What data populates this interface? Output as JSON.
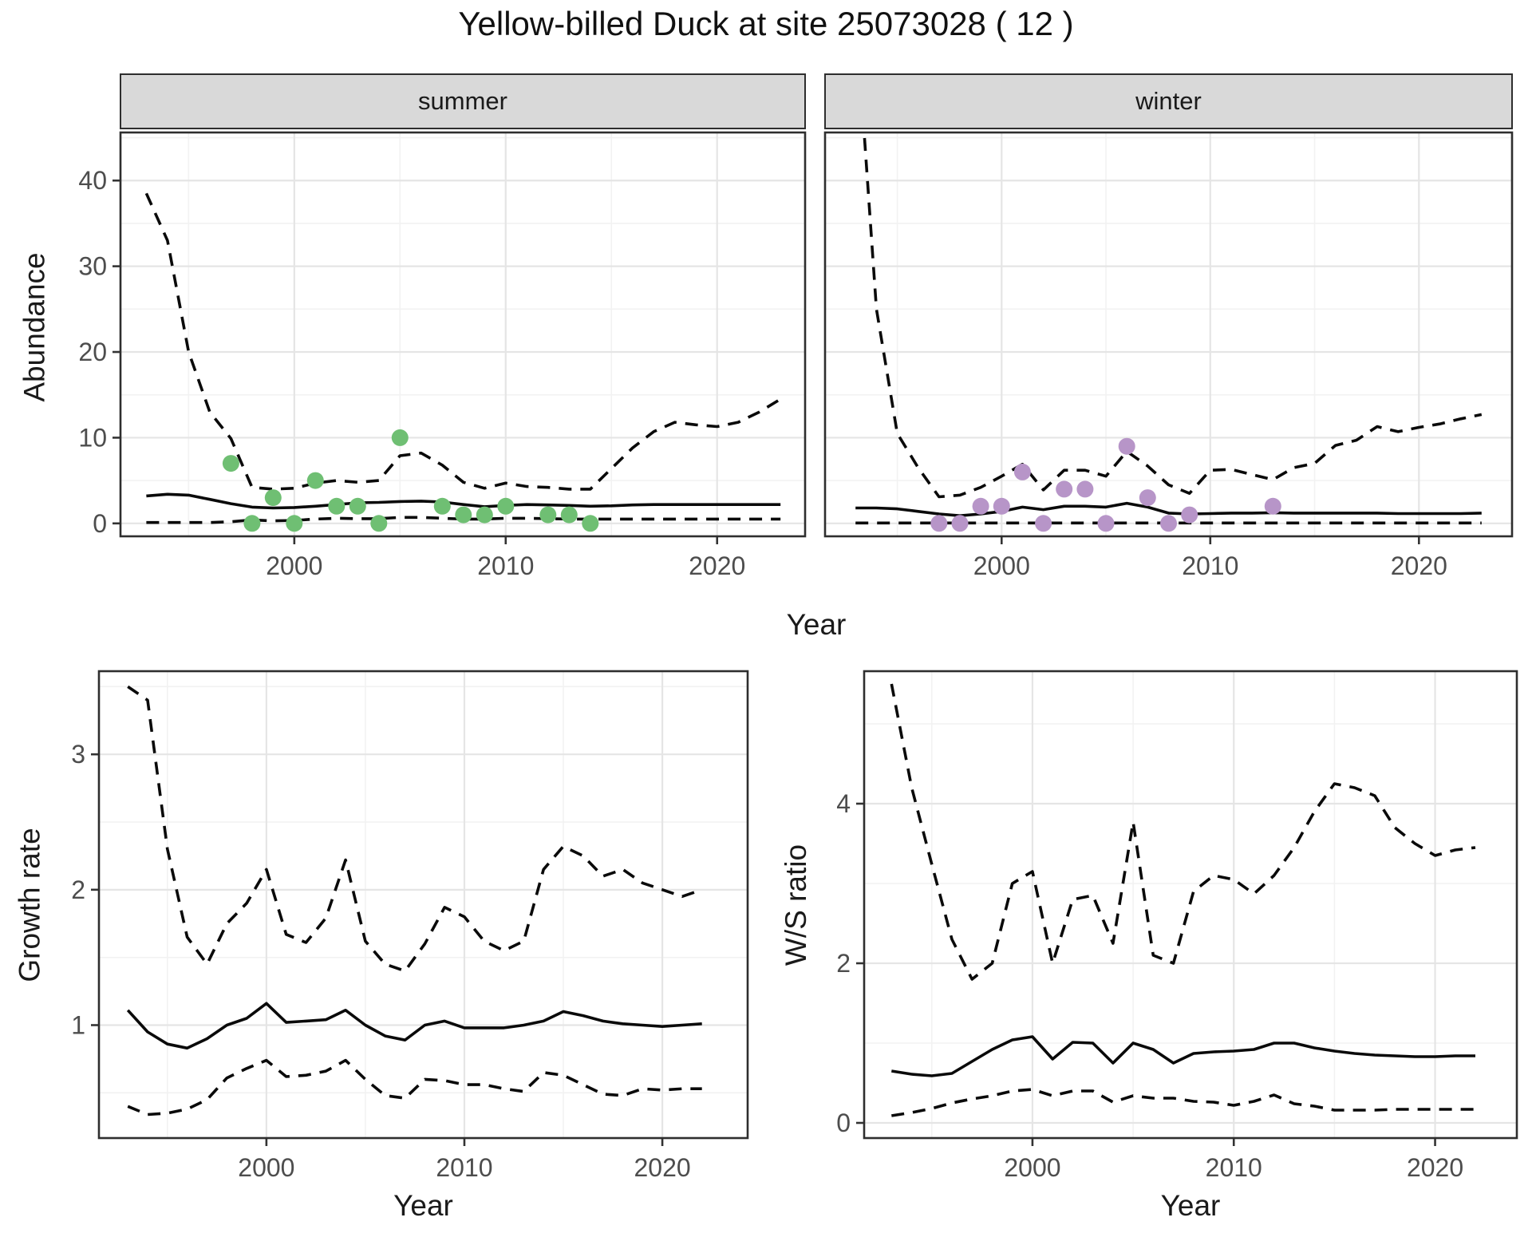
{
  "title": "Yellow-billed Duck at site 25073028 ( 12 )",
  "labels": {
    "top_ylabel": "Abundance",
    "top_xlabel": "Year",
    "facet_summer": "summer",
    "facet_winter": "winter",
    "growth_ylabel": "Growth rate",
    "growth_xlabel": "Year",
    "ws_ylabel": "W/S ratio",
    "ws_xlabel": "Year"
  },
  "colors": {
    "summer_point": "#6fbf73",
    "winter_point": "#b795c8",
    "line": "#0a0a0a",
    "strip_bg": "#d9d9d9",
    "panel_border": "#2e2e2e",
    "grid_major": "#e5e5e5",
    "grid_minor": "#f2f2f2",
    "axis_text": "#4d4d4d"
  },
  "chart_data": [
    {
      "id": "abundance-summer",
      "type": "line",
      "facet": "summer",
      "ylabel": "Abundance",
      "xlabel": "Year",
      "x": [
        1993,
        1994,
        1995,
        1996,
        1997,
        1998,
        1999,
        2000,
        2001,
        2002,
        2003,
        2004,
        2005,
        2006,
        2007,
        2008,
        2009,
        2010,
        2011,
        2012,
        2013,
        2014,
        2015,
        2016,
        2017,
        2018,
        2019,
        2020,
        2021,
        2022,
        2023
      ],
      "series": [
        {
          "name": "median",
          "style": "solid",
          "values": [
            3.2,
            3.4,
            3.3,
            2.8,
            2.3,
            1.9,
            1.8,
            1.85,
            2.0,
            2.2,
            2.4,
            2.45,
            2.55,
            2.6,
            2.5,
            2.2,
            1.95,
            2.1,
            2.2,
            2.15,
            2.1,
            2.0,
            2.05,
            2.15,
            2.2,
            2.2,
            2.2,
            2.2,
            2.2,
            2.2,
            2.2
          ]
        },
        {
          "name": "upper_ci",
          "style": "dashed",
          "values": [
            38.5,
            33,
            20,
            13,
            9.9,
            4.2,
            4.0,
            4.1,
            4.7,
            5.0,
            4.8,
            5.0,
            7.9,
            8.2,
            6.8,
            4.8,
            4.1,
            4.7,
            4.3,
            4.2,
            4.0,
            4.0,
            6.4,
            8.8,
            10.7,
            11.8,
            11.5,
            11.3,
            11.8,
            13.0,
            14.5
          ]
        },
        {
          "name": "lower_ci",
          "style": "dashed",
          "values": [
            0.1,
            0.1,
            0.1,
            0.1,
            0.2,
            0.4,
            0.3,
            0.35,
            0.5,
            0.6,
            0.55,
            0.55,
            0.7,
            0.7,
            0.6,
            0.5,
            0.5,
            0.6,
            0.6,
            0.55,
            0.5,
            0.5,
            0.5,
            0.5,
            0.5,
            0.5,
            0.5,
            0.5,
            0.5,
            0.5,
            0.5
          ]
        }
      ],
      "points": {
        "name": "observed_counts",
        "color": "#6fbf73",
        "x": [
          1997,
          1998,
          1999,
          2000,
          2001,
          2002,
          2003,
          2004,
          2005,
          2007,
          2008,
          2009,
          2010,
          2012,
          2013,
          2014
        ],
        "y": [
          7,
          0,
          3,
          0,
          5,
          2,
          2,
          0,
          10,
          2,
          1,
          1,
          2,
          1,
          1,
          0
        ]
      },
      "xlim": [
        1991.74,
        2024.2
      ],
      "ylim": [
        -1.6,
        45.7
      ],
      "xticks": [
        2000,
        2010,
        2020
      ],
      "yticks": [
        0,
        10,
        20,
        30,
        40
      ],
      "xminor": [
        1995,
        2005,
        2015
      ],
      "yminor": [
        5,
        15,
        25,
        35,
        45
      ],
      "show_y_labels": true
    },
    {
      "id": "abundance-winter",
      "type": "line",
      "facet": "winter",
      "ylabel": "Abundance",
      "xlabel": "Year",
      "x": [
        1993,
        1994,
        1995,
        1996,
        1997,
        1998,
        1999,
        2000,
        2001,
        2002,
        2003,
        2004,
        2005,
        2006,
        2007,
        2008,
        2009,
        2010,
        2011,
        2012,
        2013,
        2014,
        2015,
        2016,
        2017,
        2018,
        2019,
        2020,
        2021,
        2022,
        2023
      ],
      "series": [
        {
          "name": "median",
          "style": "solid",
          "values": [
            1.8,
            1.8,
            1.7,
            1.4,
            1.1,
            0.9,
            1.1,
            1.4,
            1.9,
            1.6,
            2.0,
            2.0,
            1.9,
            2.35,
            1.9,
            1.2,
            1.1,
            1.15,
            1.2,
            1.2,
            1.25,
            1.2,
            1.2,
            1.2,
            1.2,
            1.2,
            1.15,
            1.15,
            1.15,
            1.15,
            1.2
          ]
        },
        {
          "name": "upper_ci",
          "style": "dashed",
          "values": [
            60,
            25,
            10.5,
            6.5,
            3.1,
            3.3,
            4.2,
            5.5,
            6.9,
            3.9,
            6.2,
            6.2,
            5.5,
            8.4,
            6.7,
            4.5,
            3.5,
            6.2,
            6.3,
            5.7,
            5.1,
            6.5,
            7.0,
            9.1,
            9.7,
            11.3,
            10.7,
            11.2,
            11.6,
            12.2,
            12.7
          ]
        },
        {
          "name": "lower_ci",
          "style": "dashed",
          "values": [
            0.05,
            0.05,
            0.05,
            0.05,
            0.05,
            0.05,
            0.05,
            0.05,
            0.05,
            0.05,
            0.05,
            0.05,
            0.05,
            0.05,
            0.05,
            0.05,
            0.05,
            0.05,
            0.05,
            0.05,
            0.05,
            0.05,
            0.05,
            0.05,
            0.05,
            0.05,
            0.05,
            0.05,
            0.05,
            0.05,
            0.05
          ]
        }
      ],
      "points": {
        "name": "observed_counts",
        "color": "#b795c8",
        "x": [
          1997,
          1998,
          1999,
          2000,
          2001,
          2002,
          2003,
          2004,
          2005,
          2006,
          2007,
          2008,
          2009,
          2013
        ],
        "y": [
          0,
          0,
          2,
          2,
          6,
          0,
          4,
          4,
          0,
          9,
          3,
          0,
          1,
          2
        ]
      },
      "xlim": [
        1991.5,
        2024.5
      ],
      "ylim": [
        -1.6,
        45.7
      ],
      "xticks": [
        2000,
        2010,
        2020
      ],
      "yticks": [
        0,
        10,
        20,
        30,
        40
      ],
      "xminor": [
        1995,
        2005,
        2015
      ],
      "yminor": [
        5,
        15,
        25,
        35,
        45
      ],
      "show_y_labels": false
    },
    {
      "id": "growth-rate",
      "type": "line",
      "ylabel": "Growth rate",
      "xlabel": "Year",
      "x": [
        1993,
        1994,
        1995,
        1996,
        1997,
        1998,
        1999,
        2000,
        2001,
        2002,
        2003,
        2004,
        2005,
        2006,
        2007,
        2008,
        2009,
        2010,
        2011,
        2012,
        2013,
        2014,
        2015,
        2016,
        2017,
        2018,
        2019,
        2020,
        2021,
        2022
      ],
      "series": [
        {
          "name": "median",
          "style": "solid",
          "values": [
            1.11,
            0.95,
            0.86,
            0.83,
            0.9,
            1.0,
            1.05,
            1.16,
            1.02,
            1.03,
            1.04,
            1.11,
            1.0,
            0.92,
            0.89,
            1.0,
            1.03,
            0.98,
            0.98,
            0.98,
            1.0,
            1.03,
            1.1,
            1.07,
            1.03,
            1.01,
            1.0,
            0.99,
            1.0,
            1.01
          ]
        },
        {
          "name": "upper_ci",
          "style": "dashed",
          "values": [
            3.5,
            3.4,
            2.3,
            1.65,
            1.45,
            1.75,
            1.9,
            2.15,
            1.67,
            1.61,
            1.79,
            2.22,
            1.62,
            1.45,
            1.4,
            1.6,
            1.87,
            1.8,
            1.62,
            1.55,
            1.62,
            2.15,
            2.32,
            2.25,
            2.1,
            2.15,
            2.05,
            2.0,
            1.95,
            2.0
          ]
        },
        {
          "name": "lower_ci",
          "style": "dashed",
          "values": [
            0.4,
            0.34,
            0.35,
            0.38,
            0.45,
            0.61,
            0.68,
            0.74,
            0.62,
            0.63,
            0.66,
            0.74,
            0.6,
            0.48,
            0.46,
            0.6,
            0.59,
            0.56,
            0.56,
            0.53,
            0.51,
            0.65,
            0.63,
            0.56,
            0.49,
            0.48,
            0.53,
            0.52,
            0.53,
            0.53
          ]
        }
      ],
      "points": null,
      "xlim": [
        1991.5,
        2024.35
      ],
      "ylim": [
        0.16,
        3.62
      ],
      "xticks": [
        2000,
        2010,
        2020
      ],
      "yticks": [
        1,
        2,
        3
      ],
      "xminor": [
        1995,
        2005,
        2015
      ],
      "yminor": [
        0.5,
        1.5,
        2.5,
        3.5
      ],
      "show_y_labels": true
    },
    {
      "id": "ws-ratio",
      "type": "line",
      "ylabel": "W/S ratio",
      "xlabel": "Year",
      "x": [
        1993,
        1994,
        1995,
        1996,
        1997,
        1998,
        1999,
        2000,
        2001,
        2002,
        2003,
        2004,
        2005,
        2006,
        2007,
        2008,
        2009,
        2010,
        2011,
        2012,
        2013,
        2014,
        2015,
        2016,
        2017,
        2018,
        2019,
        2020,
        2021,
        2022
      ],
      "series": [
        {
          "name": "median",
          "style": "solid",
          "values": [
            0.65,
            0.61,
            0.59,
            0.62,
            0.77,
            0.92,
            1.04,
            1.08,
            0.8,
            1.01,
            1.0,
            0.75,
            1.0,
            0.92,
            0.75,
            0.87,
            0.89,
            0.9,
            0.92,
            1.0,
            1.0,
            0.94,
            0.9,
            0.87,
            0.85,
            0.84,
            0.83,
            0.83,
            0.84,
            0.84
          ]
        },
        {
          "name": "upper_ci",
          "style": "dashed",
          "values": [
            5.5,
            4.2,
            3.24,
            2.3,
            1.8,
            2.0,
            3.0,
            3.15,
            2.0,
            2.8,
            2.85,
            2.25,
            3.77,
            2.1,
            2.0,
            2.9,
            3.1,
            3.05,
            2.87,
            3.1,
            3.45,
            3.9,
            4.25,
            4.2,
            4.1,
            3.7,
            3.5,
            3.35,
            3.42,
            3.45
          ]
        },
        {
          "name": "lower_ci",
          "style": "dashed",
          "values": [
            0.09,
            0.13,
            0.18,
            0.25,
            0.3,
            0.34,
            0.4,
            0.42,
            0.34,
            0.4,
            0.4,
            0.26,
            0.34,
            0.31,
            0.31,
            0.27,
            0.26,
            0.22,
            0.27,
            0.35,
            0.24,
            0.21,
            0.16,
            0.16,
            0.16,
            0.17,
            0.17,
            0.17,
            0.17,
            0.17
          ]
        }
      ],
      "points": null,
      "xlim": [
        1991.6,
        2024.1
      ],
      "ylim": [
        -0.2,
        5.67
      ],
      "xticks": [
        2000,
        2010,
        2020
      ],
      "yticks": [
        0,
        2,
        4
      ],
      "xminor": [
        1995,
        2005,
        2015
      ],
      "yminor": [
        1,
        3,
        5
      ],
      "show_y_labels": true
    }
  ]
}
